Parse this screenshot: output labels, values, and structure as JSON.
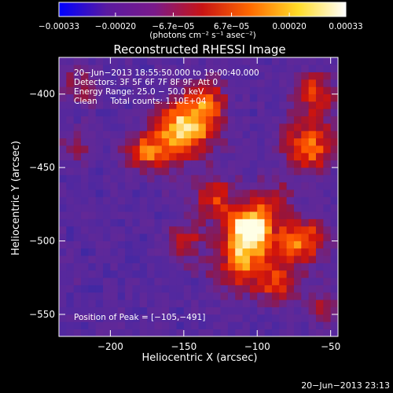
{
  "chart_data": {
    "type": "heatmap",
    "title": "Reconstructed RHESSI Image",
    "xlabel": "Heliocentric X (arcsec)",
    "ylabel": "Heliocentric Y (arcsec)",
    "xlim": [
      -235,
      -45
    ],
    "ylim": [
      -565,
      -375
    ],
    "x_ticks": [
      -200,
      -150,
      -100,
      -50
    ],
    "y_ticks": [
      -400,
      -450,
      -500,
      -550
    ],
    "x_tick_labels": [
      "−200",
      "−150",
      "−100",
      "−50"
    ],
    "y_tick_labels": [
      "−400",
      "−450",
      "−500",
      "−550"
    ],
    "colorbar": {
      "range": [
        -0.00033,
        0.00033
      ],
      "ticks": [
        -0.00033,
        -0.0002,
        -6.7e-05,
        6.7e-05,
        0.0002,
        0.00033
      ],
      "tick_labels": [
        "−0.00033",
        "−0.00020",
        "−6.7e−05",
        "6.7e−05",
        "0.00020",
        "0.00033"
      ],
      "unit_label": "(photons cm⁻² s⁻¹ asec⁻²)",
      "colors": [
        "#0000ff",
        "#5a1aa0",
        "#7a1a8a",
        "#c81414",
        "#ff6a00",
        "#ffdc28",
        "#ffffff"
      ]
    },
    "info_lines": [
      "20−Jun−2013 18:55:50.000 to 19:00:40.000",
      "Detectors: 3F 5F 6F 7F 8F 9F, Att 0",
      "Energy Range: 25.0 − 50.0 keV",
      "Clean     Total counts: 1.10E+04"
    ],
    "peak_label": "Position of Peak = [−105,−491]",
    "peak": {
      "x": -105,
      "y": -491
    },
    "bright_regions": [
      {
        "x": -105,
        "y": -491,
        "intensity": 1.0,
        "sigma": 11
      },
      {
        "x": -150,
        "y": -425,
        "intensity": 0.85,
        "sigma": 14
      },
      {
        "x": -135,
        "y": -405,
        "intensity": 0.55,
        "sigma": 10
      },
      {
        "x": -175,
        "y": -440,
        "intensity": 0.55,
        "sigma": 10
      },
      {
        "x": -65,
        "y": -435,
        "intensity": 0.7,
        "sigma": 12
      },
      {
        "x": -60,
        "y": -400,
        "intensity": 0.55,
        "sigma": 10
      },
      {
        "x": -70,
        "y": -500,
        "intensity": 0.65,
        "sigma": 12
      },
      {
        "x": -110,
        "y": -515,
        "intensity": 0.6,
        "sigma": 14
      },
      {
        "x": -130,
        "y": -470,
        "intensity": 0.5,
        "sigma": 10
      },
      {
        "x": -150,
        "y": -500,
        "intensity": 0.4,
        "sigma": 9
      },
      {
        "x": -85,
        "y": -530,
        "intensity": 0.45,
        "sigma": 10
      },
      {
        "x": -55,
        "y": -545,
        "intensity": 0.35,
        "sigma": 8
      },
      {
        "x": -220,
        "y": -395,
        "intensity": 0.3,
        "sigma": 9
      },
      {
        "x": -225,
        "y": -435,
        "intensity": 0.25,
        "sigma": 8
      },
      {
        "x": -90,
        "y": -470,
        "intensity": 0.35,
        "sigma": 9
      }
    ],
    "grid": false
  },
  "timestamp": "20−Jun−2013 23:13"
}
